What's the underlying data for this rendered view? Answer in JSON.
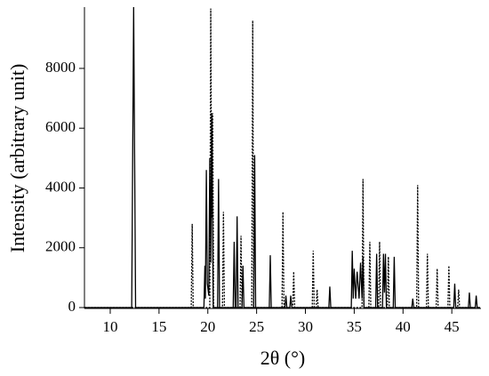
{
  "chart_data": {
    "type": "line",
    "xlabel": "2θ (°)",
    "ylabel": "Intensity (arbitrary unit)",
    "xlim": [
      7.36,
      47.9
    ],
    "ylim": [
      0,
      10050
    ],
    "xticks": [
      10,
      15,
      20,
      25,
      30,
      35,
      40,
      45
    ],
    "yticks": [
      0,
      2000,
      4000,
      6000,
      8000
    ],
    "series": [
      {
        "color": "#000000",
        "dash": "solid",
        "x": [
          7.4,
          12.2,
          12.4,
          12.6,
          19.6,
          19.7,
          19.75,
          19.85,
          19.95,
          20.1,
          20.2,
          20.3,
          20.4,
          20.55,
          21.0,
          21.1,
          21.2,
          22.6,
          22.7,
          22.8,
          22.9,
          23.0,
          23.1,
          23.5,
          23.6,
          23.7,
          24.7,
          24.8,
          24.9,
          26.3,
          26.4,
          26.5,
          27.9,
          28.0,
          28.1,
          28.4,
          28.5,
          28.6,
          32.4,
          32.5,
          32.6,
          34.7,
          34.8,
          34.9,
          35.0,
          35.15,
          35.3,
          35.5,
          35.65,
          35.8,
          35.9,
          36.0,
          36.1,
          37.2,
          37.3,
          37.4,
          37.9,
          38.0,
          38.1,
          38.2,
          38.3,
          39.0,
          39.1,
          39.2,
          40.9,
          41.0,
          41.1,
          45.2,
          45.3,
          45.4,
          46.7,
          46.8,
          46.9,
          47.4,
          47.5,
          47.6,
          47.9
        ],
        "values": [
          0,
          0,
          10050,
          0,
          0,
          1400,
          300,
          4600,
          800,
          400,
          5000,
          1500,
          6500,
          0,
          0,
          4300,
          0,
          0,
          2200,
          0,
          0,
          3050,
          0,
          0,
          1400,
          0,
          0,
          5100,
          0,
          0,
          1750,
          0,
          0,
          400,
          0,
          0,
          400,
          0,
          0,
          700,
          0,
          0,
          1900,
          300,
          1300,
          300,
          1200,
          300,
          1500,
          300,
          1700,
          0,
          0,
          0,
          1800,
          0,
          0,
          1800,
          500,
          1800,
          0,
          0,
          1700,
          0,
          0,
          300,
          0,
          0,
          800,
          0,
          0,
          500,
          0,
          0,
          400,
          0,
          0
        ]
      },
      {
        "color": "#000000",
        "dash": "dotted",
        "x": [
          7.4,
          18.3,
          18.4,
          18.5,
          20.2,
          20.3,
          20.4,
          20.5,
          20.6,
          21.5,
          21.6,
          21.7,
          23.3,
          23.4,
          23.5,
          24.5,
          24.6,
          24.7,
          27.6,
          27.7,
          27.8,
          28.7,
          28.8,
          28.9,
          30.7,
          30.8,
          30.9,
          31.1,
          31.2,
          31.3,
          35.8,
          35.9,
          36.0,
          36.5,
          36.6,
          36.7,
          37.5,
          37.6,
          37.7,
          38.4,
          38.5,
          38.6,
          41.4,
          41.5,
          41.6,
          42.4,
          42.5,
          42.6,
          43.4,
          43.5,
          43.6,
          44.6,
          44.7,
          44.8,
          45.6,
          45.7,
          45.8,
          47.9
        ],
        "values": [
          0,
          0,
          2800,
          0,
          0,
          10000,
          3000,
          6500,
          0,
          0,
          3200,
          0,
          0,
          2400,
          0,
          0,
          9600,
          0,
          0,
          3200,
          0,
          0,
          1200,
          0,
          0,
          1900,
          0,
          0,
          600,
          0,
          0,
          4300,
          0,
          0,
          2200,
          0,
          0,
          2200,
          0,
          0,
          1700,
          0,
          0,
          4100,
          0,
          0,
          1800,
          0,
          0,
          1300,
          0,
          0,
          1400,
          0,
          0,
          600,
          0,
          0
        ]
      }
    ]
  }
}
